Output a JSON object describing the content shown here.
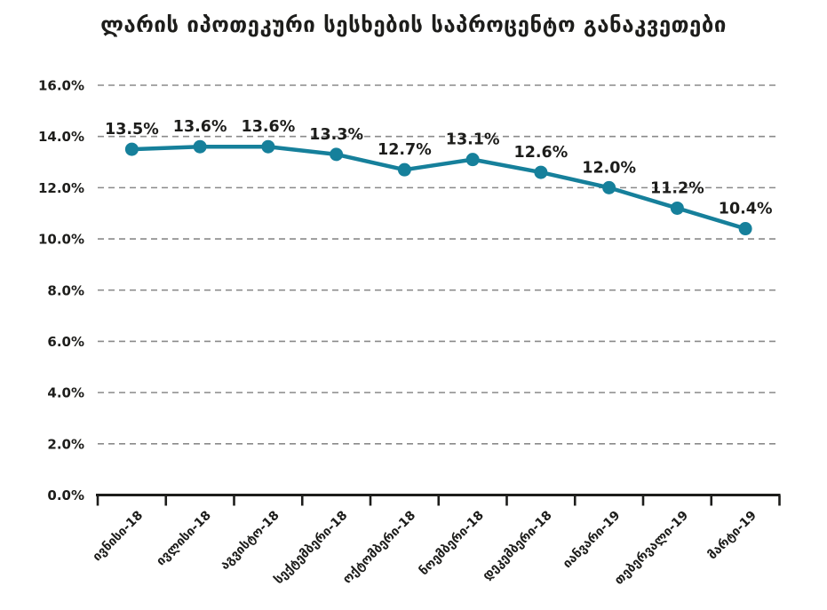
{
  "chart_data": {
    "type": "line",
    "title": "ლარის იპოთეკური სესხების საპროცენტო განაკვეთები",
    "categories": [
      "ივნისი-18",
      "ივლისი-18",
      "აგვისტო-18",
      "სექტემბერი-18",
      "ოქტომბერი-18",
      "ნოემბერი-18",
      "დეკემბერი-18",
      "იანვარი-19",
      "თებერვალი-19",
      "მარტი-19"
    ],
    "values": [
      13.5,
      13.6,
      13.6,
      13.3,
      12.7,
      13.1,
      12.6,
      12.0,
      11.2,
      10.4
    ],
    "point_labels": [
      "13.5%",
      "13.6%",
      "13.6%",
      "13.3%",
      "12.7%",
      "13.1%",
      "12.6%",
      "12.0%",
      "11.2%",
      "10.4%"
    ],
    "xlabel": "",
    "ylabel": "",
    "ylim": [
      0,
      16
    ],
    "ytick_step": 2,
    "ytick_labels": [
      "0.0%",
      "2.0%",
      "4.0%",
      "6.0%",
      "8.0%",
      "10.0%",
      "12.0%",
      "14.0%",
      "16.0%"
    ],
    "legend": "none",
    "grid": "horizontal-dashed",
    "colors": {
      "line": "#16809B",
      "marker": "#16809B",
      "text": "#1D1D1B",
      "grid": "#8A8A8A",
      "axis": "#1D1D1B",
      "background": "#FFFFFF"
    }
  }
}
